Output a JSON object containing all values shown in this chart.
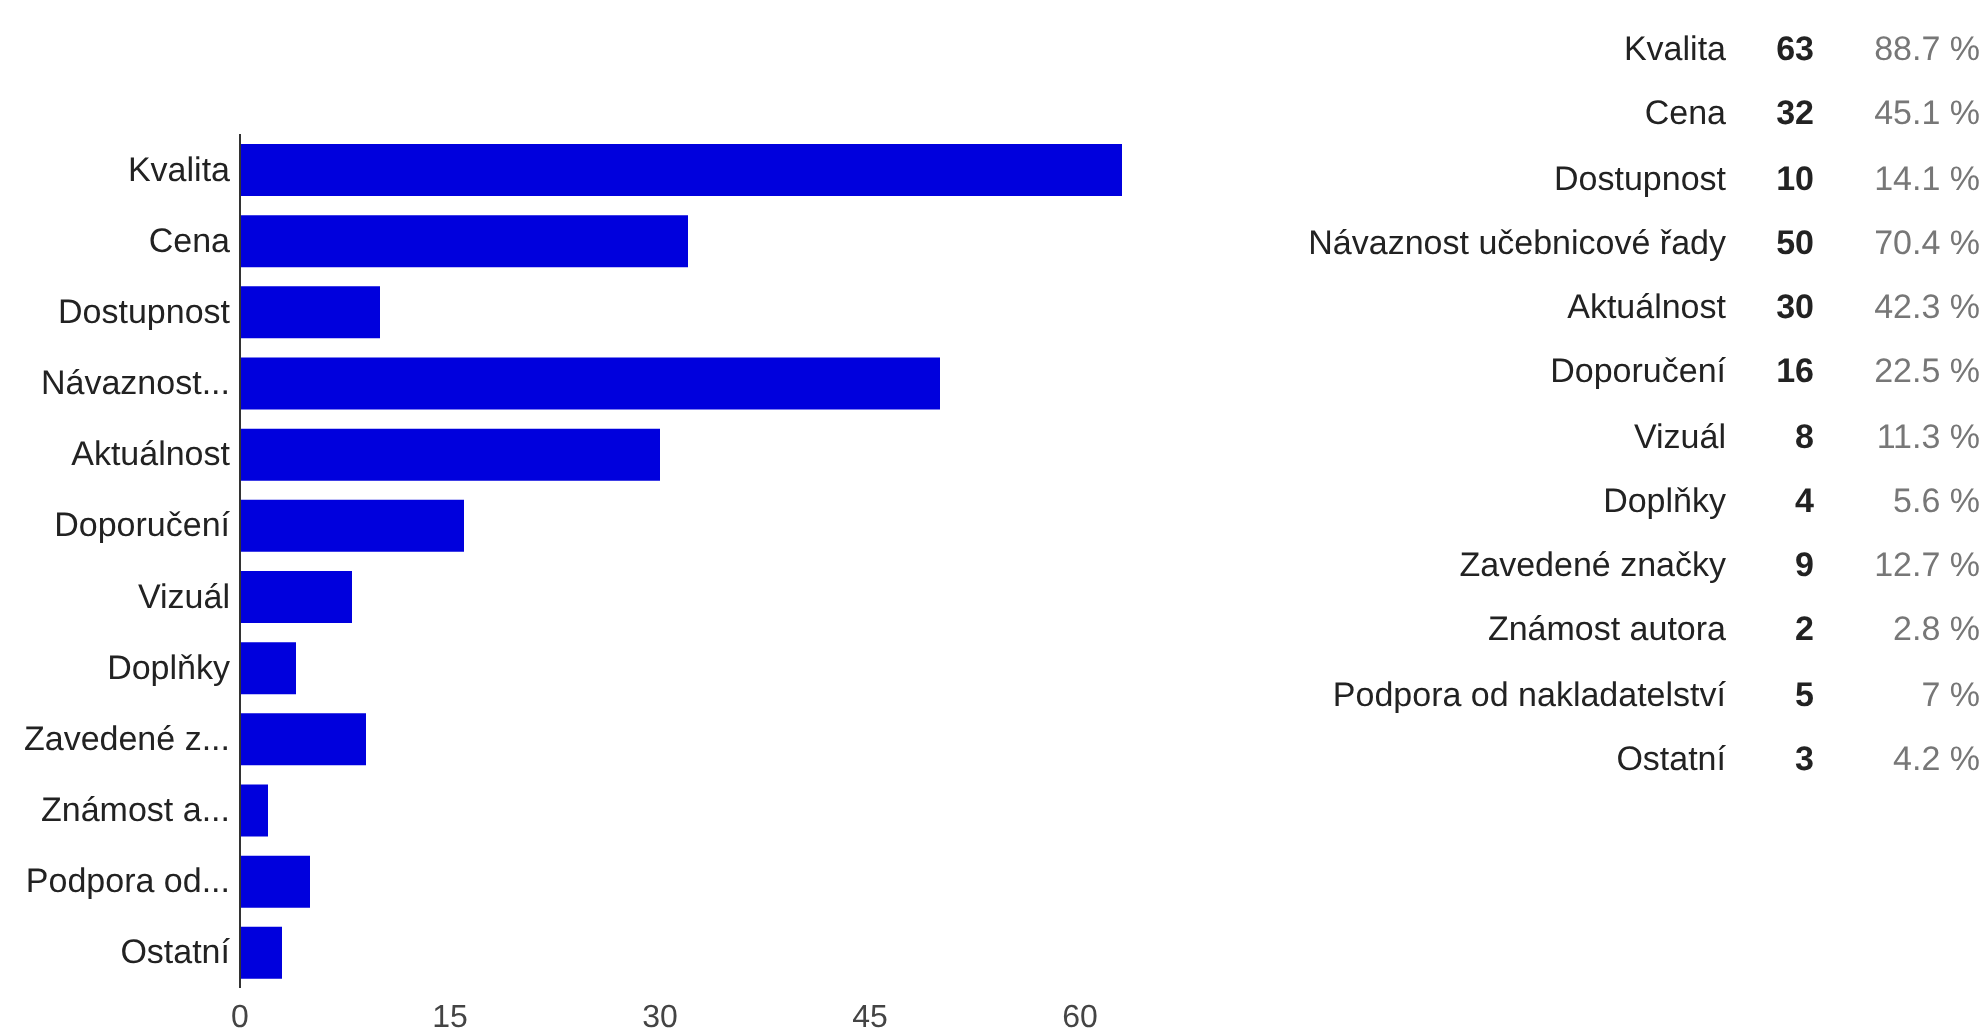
{
  "chart_data": [
    {
      "type": "bar",
      "orientation": "horizontal",
      "categories": [
        "Kvalita",
        "Cena",
        "Dostupnost",
        "Návaznost...",
        "Aktuálnost",
        "Doporučení",
        "Vizuál",
        "Doplňky",
        "Zavedené z...",
        "Známost a...",
        "Podpora od...",
        "Ostatní"
      ],
      "values": [
        63,
        32,
        10,
        50,
        30,
        16,
        8,
        4,
        9,
        2,
        5,
        3
      ],
      "color": "#0000dd",
      "xlim": [
        0,
        63
      ],
      "xticks": [
        0,
        15,
        30,
        45,
        60
      ]
    },
    {
      "type": "other",
      "categories": [
        "Kvalita",
        "Cena",
        "Dostupnost",
        "Návaznost učebnicové řady",
        "Aktuálnost",
        "Doporučení",
        "Vizuál",
        "Doplňky",
        "Zavedené značky",
        "Známost autora",
        "Podpora od nakladatelství",
        "Ostatní"
      ],
      "data_labels": true,
      "series": [
        {
          "color": "#222222",
          "values": [
            63,
            32,
            10,
            50,
            30,
            16,
            8,
            4,
            9,
            2,
            5,
            3
          ]
        },
        {
          "color": "#777777",
          "values": [
            88.7,
            45.1,
            14.1,
            70.4,
            42.3,
            22.5,
            11.3,
            5.6,
            12.7,
            2.8,
            7,
            4.2
          ],
          "value_labels": [
            "88.7 %",
            "45.1 %",
            "14.1 %",
            "70.4 %",
            "42.3 %",
            "22.5 %",
            "11.3 %",
            "5.6 %",
            "12.7 %",
            "2.8 %",
            "7 %",
            "4.2 %"
          ]
        }
      ]
    }
  ]
}
